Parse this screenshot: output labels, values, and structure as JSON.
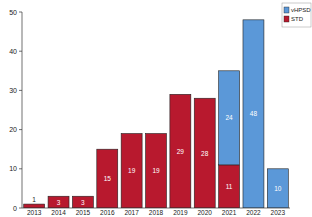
{
  "chart_data": {
    "type": "bar",
    "stacked": true,
    "data_labels": true,
    "grid": false,
    "legend": "top-right",
    "categories": [
      "2013",
      "2014",
      "2015",
      "2016",
      "2017",
      "2018",
      "2019",
      "2020",
      "2021",
      "2022",
      "2023"
    ],
    "series": [
      {
        "name": "STD",
        "color": "#b8192e",
        "values": [
          1,
          3,
          3,
          15,
          19,
          19,
          29,
          28,
          11,
          0,
          0
        ]
      },
      {
        "name": "vHPSD",
        "color": "#5b98d8",
        "values": [
          0,
          0,
          0,
          0,
          0,
          0,
          0,
          0,
          24,
          48,
          10
        ]
      }
    ],
    "ylim": [
      0,
      50
    ],
    "yticks": [
      0,
      10,
      20,
      30,
      40,
      50
    ]
  }
}
